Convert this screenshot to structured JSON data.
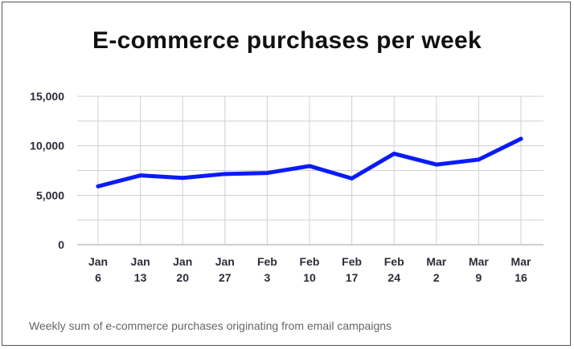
{
  "chart_data": {
    "type": "line",
    "title": "E-commerce purchases per week",
    "caption": "Weekly sum of e-commerce purchases originating from email campaigns",
    "categories": [
      [
        "Jan",
        "6"
      ],
      [
        "Jan",
        "13"
      ],
      [
        "Jan",
        "20"
      ],
      [
        "Jan",
        "27"
      ],
      [
        "Feb",
        "3"
      ],
      [
        "Feb",
        "10"
      ],
      [
        "Feb",
        "17"
      ],
      [
        "Feb",
        "24"
      ],
      [
        "Mar",
        "2"
      ],
      [
        "Mar",
        "9"
      ],
      [
        "Mar",
        "16"
      ]
    ],
    "series": [
      {
        "values": [
          5900,
          7000,
          6750,
          7150,
          7250,
          7950,
          6700,
          9200,
          8100,
          8600,
          10700
        ]
      }
    ],
    "ylim": [
      0,
      15000
    ],
    "yticks": [
      "0",
      "5,000",
      "10,000",
      "15,000"
    ],
    "ytick_values": [
      0,
      5000,
      10000,
      15000
    ],
    "grid": true,
    "colors": {
      "line": "#0a1cf5",
      "grid": "#d0d0d6",
      "baseline": "#bfbfc7"
    }
  }
}
